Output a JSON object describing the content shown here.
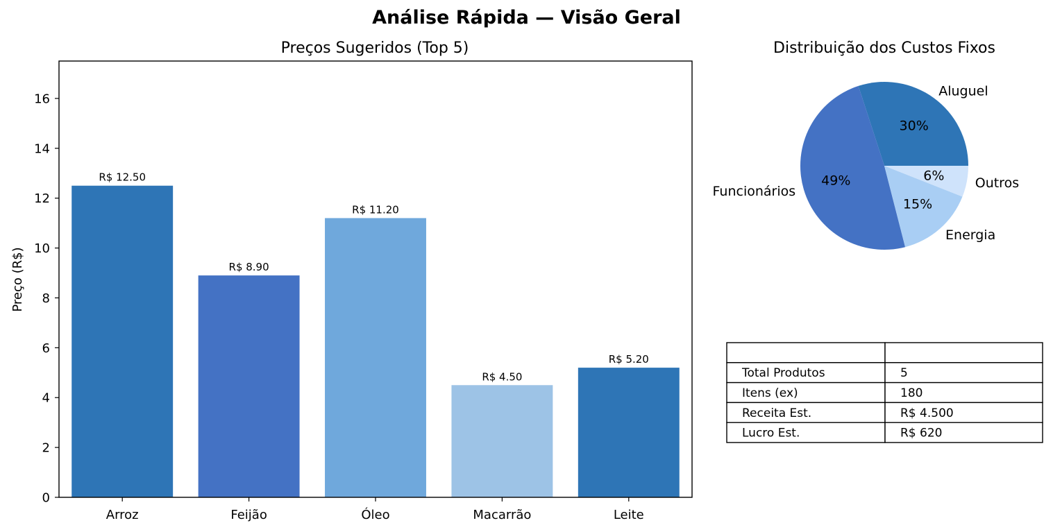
{
  "figure": {
    "title": "Análise Rápida — Visão Geral"
  },
  "chart_data": [
    {
      "type": "bar",
      "title": "Preços Sugeridos (Top 5)",
      "xlabel": "",
      "ylabel": "Preço (R$)",
      "categories": [
        "Arroz",
        "Feijão",
        "Óleo",
        "Macarrão",
        "Leite"
      ],
      "values": [
        12.5,
        8.9,
        11.2,
        4.5,
        5.2
      ],
      "data_labels": [
        "R$ 12.50",
        "R$ 8.90",
        "R$ 11.20",
        "R$ 4.50",
        "R$ 5.20"
      ],
      "colors": [
        "#2e75b6",
        "#4472c4",
        "#6fa8dc",
        "#9dc3e6",
        "#2e75b6"
      ],
      "ylim": [
        0,
        17.5
      ],
      "yticks": [
        0,
        2,
        4,
        6,
        8,
        10,
        12,
        14,
        16
      ],
      "grid": false
    },
    {
      "type": "pie",
      "title": "Distribuição dos Custos Fixos",
      "labels": [
        "Aluguel",
        "Funcionários",
        "Energia",
        "Outros"
      ],
      "values": [
        30,
        49,
        15,
        6
      ],
      "pct_labels": [
        "30%",
        "49%",
        "15%",
        "6%"
      ],
      "colors": [
        "#2e75b6",
        "#4472c4",
        "#a9cef4",
        "#cfe3fb"
      ]
    },
    {
      "type": "table",
      "header": [
        "",
        ""
      ],
      "rows": [
        [
          "Total Produtos",
          "5"
        ],
        [
          "Itens (ex)",
          "180"
        ],
        [
          "Receita Est.",
          "R$ 4.500"
        ],
        [
          "Lucro Est.",
          "R$ 620"
        ]
      ]
    }
  ]
}
